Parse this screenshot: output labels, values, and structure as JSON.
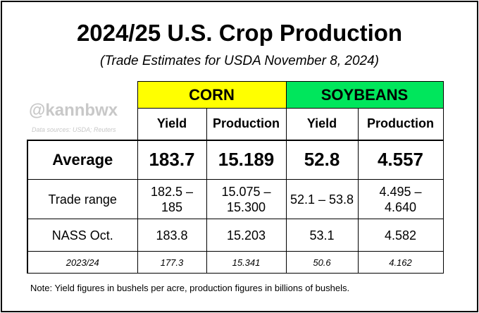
{
  "title": "2024/25 U.S. Crop Production",
  "subtitle": "(Trade Estimates for USDA November 8, 2024)",
  "watermark": {
    "handle": "@kannbwx",
    "sources": "Data sources: USDA; Reuters"
  },
  "groups": {
    "corn": "CORN",
    "soybeans": "SOYBEANS"
  },
  "columns": [
    "Yield",
    "Production",
    "Yield",
    "Production"
  ],
  "rows": [
    {
      "label": "Average",
      "values": [
        "183.7",
        "15.189",
        "52.8",
        "4.557"
      ]
    },
    {
      "label": "Trade range",
      "values": [
        "182.5 –\n185",
        "15.075 –\n15.300",
        "52.1 – 53.8",
        "4.495 –\n4.640"
      ]
    },
    {
      "label": "NASS Oct.",
      "values": [
        "183.8",
        "15.203",
        "53.1",
        "4.582"
      ]
    },
    {
      "label": "2023/24",
      "values": [
        "177.3",
        "15.341",
        "50.6",
        "4.162"
      ]
    }
  ],
  "note": "Note: Yield figures in bushels per acre, production figures in billions of bushels.",
  "colors": {
    "corn": "#ffff00",
    "soybeans": "#00e65c",
    "watermark": "#c8c8c8"
  }
}
